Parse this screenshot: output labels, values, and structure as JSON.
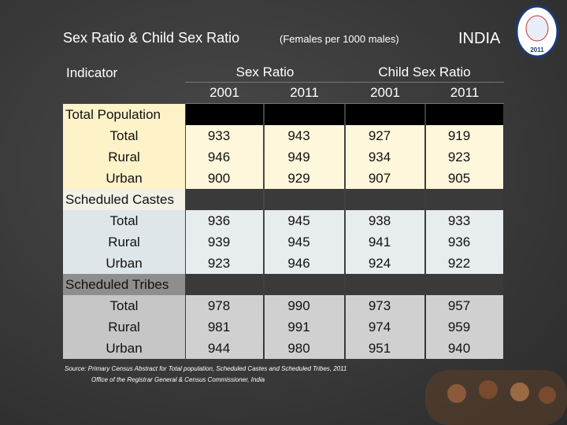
{
  "header": {
    "title": "Sex Ratio & Child Sex Ratio",
    "subtitle": "(Females per 1000 males)",
    "country": "INDIA",
    "logo_year": "2011"
  },
  "table": {
    "columns": [
      "Indicator",
      "Sex Ratio",
      "Child Sex Ratio"
    ],
    "years": [
      "2001",
      "2011",
      "2001",
      "2011"
    ],
    "groups": [
      {
        "name": "Total Population",
        "rows": [
          {
            "label": "Total",
            "values": [
              933,
              943,
              927,
              919
            ]
          },
          {
            "label": "Rural",
            "values": [
              946,
              949,
              934,
              923
            ]
          },
          {
            "label": "Urban",
            "values": [
              900,
              929,
              907,
              905
            ]
          }
        ]
      },
      {
        "name": "Scheduled Castes",
        "rows": [
          {
            "label": "Total",
            "values": [
              936,
              945,
              938,
              933
            ]
          },
          {
            "label": "Rural",
            "values": [
              939,
              945,
              941,
              936
            ]
          },
          {
            "label": "Urban",
            "values": [
              923,
              946,
              924,
              922
            ]
          }
        ]
      },
      {
        "name": "Scheduled Tribes",
        "rows": [
          {
            "label": "Total",
            "values": [
              978,
              990,
              973,
              957
            ]
          },
          {
            "label": "Rural",
            "values": [
              981,
              991,
              974,
              959
            ]
          },
          {
            "label": "Urban",
            "values": [
              944,
              980,
              951,
              940
            ]
          }
        ]
      }
    ]
  },
  "source": [
    "Source: Primary Census Abstract for Total population, Scheduled Castes and Scheduled Tribes, 2011",
    "Office of the Registrar General & Census Commissioner, India"
  ]
}
